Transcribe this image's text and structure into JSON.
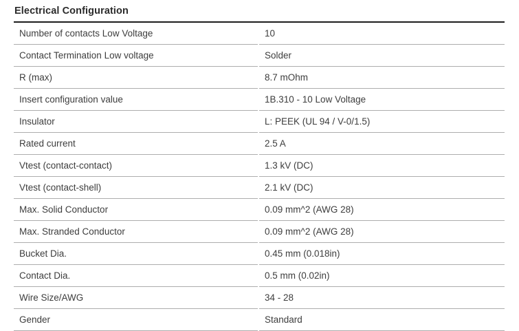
{
  "section": {
    "title": "Electrical Configuration"
  },
  "colors": {
    "background": "#ffffff",
    "title_text": "#2b2b2b",
    "row_text": "#3d3d3d",
    "header_rule": "#1c1c1c",
    "row_divider": "#adadad"
  },
  "table": {
    "rows": [
      {
        "label": "Number of contacts Low Voltage",
        "value": "10"
      },
      {
        "label": "Contact Termination Low voltage",
        "value": "Solder"
      },
      {
        "label": "R (max)",
        "value": "8.7 mOhm"
      },
      {
        "label": "Insert configuration value",
        "value": "1B.310 - 10 Low Voltage"
      },
      {
        "label": "Insulator",
        "value": "L: PEEK (UL 94 / V-0/1.5)"
      },
      {
        "label": "Rated current",
        "value": "2.5 A"
      },
      {
        "label": "Vtest (contact-contact)",
        "value": "1.3 kV (DC)"
      },
      {
        "label": "Vtest (contact-shell)",
        "value": "2.1 kV (DC)"
      },
      {
        "label": "Max. Solid Conductor",
        "value": "0.09 mm^2 (AWG 28)"
      },
      {
        "label": "Max. Stranded Conductor",
        "value": "0.09 mm^2 (AWG 28)"
      },
      {
        "label": "Bucket Dia.",
        "value": "0.45 mm (0.018in)"
      },
      {
        "label": "Contact Dia.",
        "value": "0.5 mm (0.02in)"
      },
      {
        "label": "Wire Size/AWG",
        "value": "34 - 28"
      },
      {
        "label": "Gender",
        "value": "Standard"
      }
    ]
  }
}
